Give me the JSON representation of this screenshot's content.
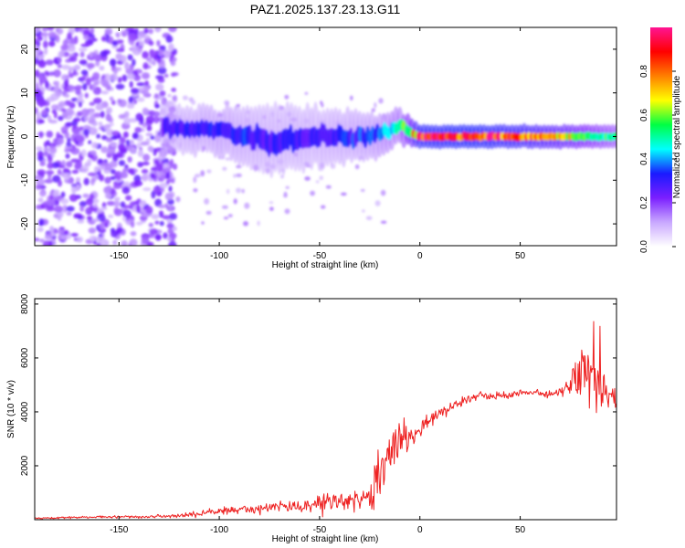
{
  "figure_title": "PAZ1.2025.137.23.13.G11",
  "chart_data": [
    {
      "type": "heatmap",
      "title": "PAZ1.2025.137.23.13.G11",
      "xlabel": "Height of straight line (km)",
      "ylabel": "Frequency (Hz)",
      "xlim": [
        -192,
        98
      ],
      "ylim": [
        -25,
        25
      ],
      "xticks": [
        -150,
        -100,
        -50,
        0,
        50
      ],
      "yticks": [
        -20,
        -10,
        0,
        10,
        20
      ],
      "colorbar": {
        "label": "Normalized spectral amplitude",
        "range": [
          0,
          1
        ],
        "ticks": [
          0.0,
          0.2,
          0.4,
          0.6,
          0.8
        ],
        "colors": [
          "#ffffff",
          "#c9a8ff",
          "#7b1fff",
          "#1a1aff",
          "#00ffff",
          "#00ff44",
          "#ffff00",
          "#ff7f00",
          "#ff0000",
          "#ff1493"
        ]
      },
      "ridge": [
        {
          "x": -190,
          "freq": 0,
          "width": 25,
          "amp": 0.15
        },
        {
          "x": -125,
          "freq": 2,
          "width": 4,
          "amp": 0.3
        },
        {
          "x": -100,
          "freq": 1.5,
          "width": 4,
          "amp": 0.35
        },
        {
          "x": -75,
          "freq": -1,
          "width": 6,
          "amp": 0.3
        },
        {
          "x": -50,
          "freq": 0,
          "width": 5,
          "amp": 0.3
        },
        {
          "x": -25,
          "freq": 0,
          "width": 4,
          "amp": 0.35
        },
        {
          "x": -10,
          "freq": 2,
          "width": 3,
          "amp": 0.45
        },
        {
          "x": 0,
          "freq": 0,
          "width": 2,
          "amp": 0.9
        },
        {
          "x": 25,
          "freq": 0,
          "width": 2,
          "amp": 0.95
        },
        {
          "x": 50,
          "freq": 0,
          "width": 2,
          "amp": 0.85
        },
        {
          "x": 75,
          "freq": 0,
          "width": 2,
          "amp": 0.7
        },
        {
          "x": 98,
          "freq": 0,
          "width": 2,
          "amp": 0.5
        }
      ]
    },
    {
      "type": "line",
      "xlabel": "Height of straight line (km)",
      "ylabel": "SNR (10 * v/v)",
      "xlim": [
        -192,
        98
      ],
      "ylim": [
        0,
        8200
      ],
      "xticks": [
        -150,
        -100,
        -50,
        0,
        50
      ],
      "yticks": [
        2000,
        4000,
        6000,
        8000
      ],
      "color": "#ee2222",
      "series": [
        {
          "name": "SNR",
          "x": [
            -190,
            -160,
            -130,
            -120,
            -100,
            -80,
            -60,
            -50,
            -40,
            -30,
            -25,
            -20,
            -15,
            -10,
            -5,
            0,
            5,
            10,
            20,
            30,
            40,
            50,
            60,
            70,
            75,
            80,
            85,
            90,
            95,
            98
          ],
          "values": [
            50,
            100,
            120,
            150,
            300,
            400,
            500,
            550,
            600,
            700,
            900,
            1600,
            2600,
            3000,
            3000,
            3300,
            3700,
            4000,
            4300,
            4600,
            4600,
            4700,
            4700,
            4700,
            5000,
            5300,
            5500,
            4800,
            4500,
            4400
          ],
          "noise": [
            50,
            60,
            80,
            100,
            250,
            300,
            300,
            500,
            500,
            500,
            700,
            1800,
            1500,
            1300,
            500,
            500,
            450,
            350,
            300,
            200,
            200,
            200,
            200,
            300,
            900,
            1500,
            2000,
            1300,
            700,
            600
          ]
        }
      ]
    }
  ]
}
